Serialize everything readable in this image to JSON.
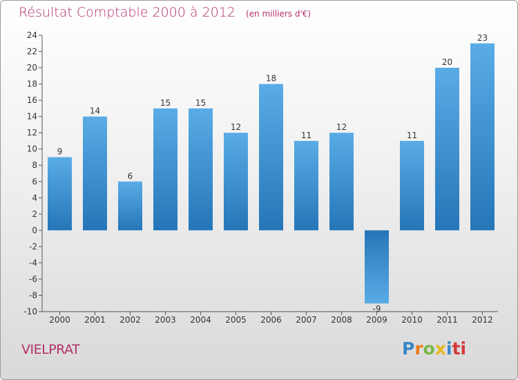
{
  "title": "Résultat Comptable 2000 à 2012",
  "unit": "(en milliers d'€)",
  "commune": "VIELPRAT",
  "logo": {
    "letters": [
      "P",
      "r",
      "o",
      "x",
      "i",
      "ti"
    ],
    "colors": [
      "#3a86c8",
      "#e87d1e",
      "#7ab648",
      "#e8b81e",
      "#3a86c8",
      "#d43a3a"
    ]
  },
  "colors": {
    "bar_top": "#5aace6",
    "bar_bottom": "#2476b8",
    "title": "#b0306a"
  },
  "chart_data": {
    "type": "bar",
    "categories": [
      "2000",
      "2001",
      "2002",
      "2003",
      "2004",
      "2005",
      "2006",
      "2007",
      "2008",
      "2009",
      "2010",
      "2011",
      "2012"
    ],
    "values": [
      9,
      14,
      6,
      15,
      15,
      12,
      18,
      11,
      12,
      -9,
      11,
      20,
      23
    ],
    "title": "Résultat Comptable 2000 à 2012",
    "ylim": [
      -10,
      24
    ],
    "yticks": [
      -10,
      -8,
      -6,
      -4,
      -2,
      0,
      2,
      4,
      6,
      8,
      10,
      12,
      14,
      16,
      18,
      20,
      22,
      24
    ],
    "grid": false,
    "data_labels": true
  }
}
